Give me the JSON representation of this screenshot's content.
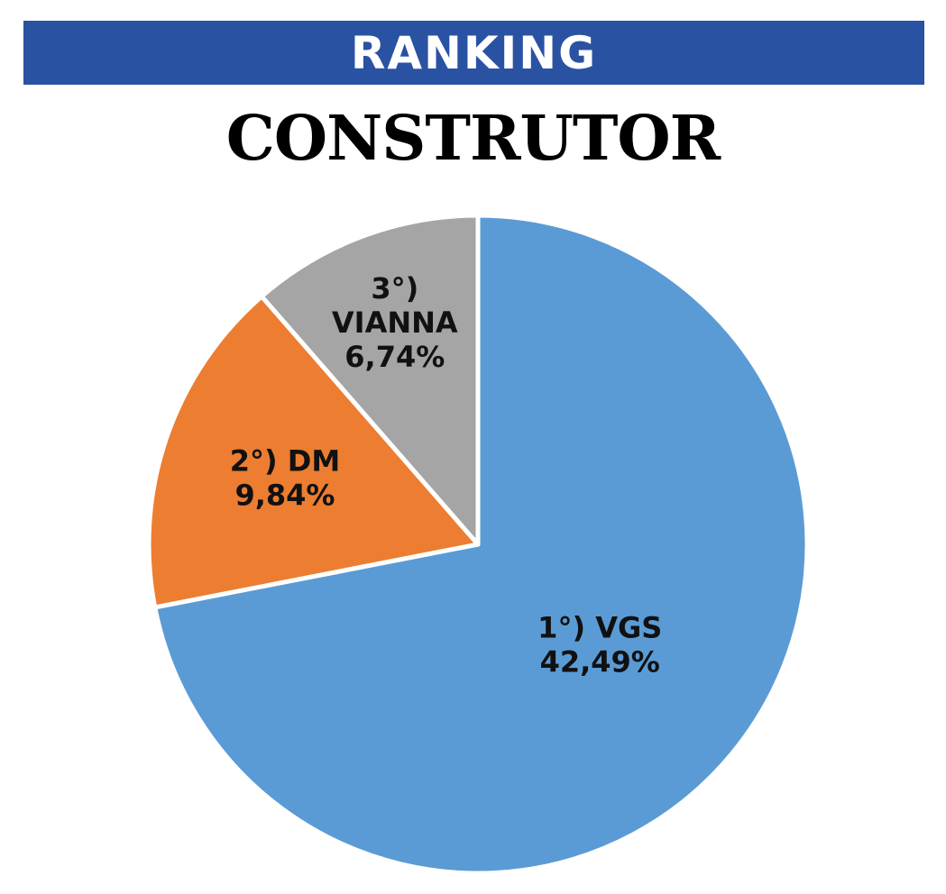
{
  "header": {
    "banner_text": "RANKING",
    "subtitle": "CONSTRUTOR"
  },
  "colors": {
    "banner_bg": "#2a52a3",
    "slice_1": "#5b9bd5",
    "slice_2": "#ed7d31",
    "slice_3": "#a5a5a5",
    "slice_border": "#ffffff"
  },
  "chart_data": {
    "type": "pie",
    "title": "CONSTRUTOR",
    "slices": [
      {
        "label_lines": [
          "1°) VGS",
          "42,49%"
        ],
        "value": 42.49,
        "color": "#5b9bd5"
      },
      {
        "label_lines": [
          "2°) DM",
          "9,84%"
        ],
        "value": 9.84,
        "color": "#ed7d31"
      },
      {
        "label_lines": [
          "3°)",
          "VIANNA",
          "6,74%"
        ],
        "value": 6.74,
        "color": "#a5a5a5"
      }
    ],
    "start_angle_deg": 0,
    "direction": "clockwise",
    "legend": "none"
  }
}
